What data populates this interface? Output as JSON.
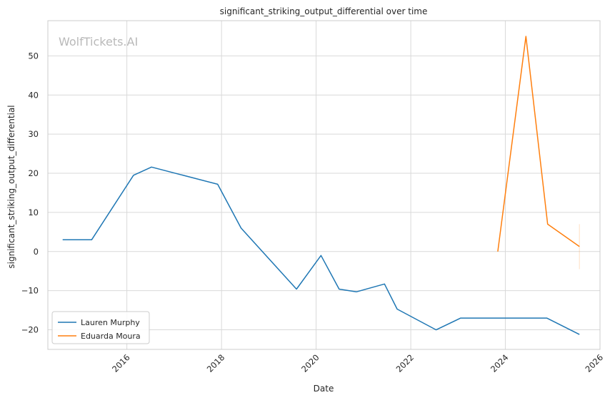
{
  "chart_data": {
    "type": "line",
    "title": "significant_striking_output_differential over time",
    "xlabel": "Date",
    "ylabel": "significant_striking_output_differential",
    "watermark": "WolfTickets.AI",
    "xlim": [
      "2014-05-01",
      "2026-01-01"
    ],
    "ylim": [
      -25,
      59
    ],
    "x_ticks": [
      "2016",
      "2018",
      "2020",
      "2022",
      "2024",
      "2026"
    ],
    "y_ticks": [
      -20,
      -10,
      0,
      10,
      20,
      30,
      40,
      50
    ],
    "grid": true,
    "legend_position": "lower-left",
    "series": [
      {
        "name": "Lauren Murphy",
        "color": "#1f77b4",
        "points": [
          {
            "x": "2014-08-23",
            "y": 3.0
          },
          {
            "x": "2015-04-04",
            "y": 3.0
          },
          {
            "x": "2016-02-21",
            "y": 19.5
          },
          {
            "x": "2016-07-09",
            "y": 21.6
          },
          {
            "x": "2017-12-02",
            "y": 17.2
          },
          {
            "x": "2018-06-01",
            "y": 6.0
          },
          {
            "x": "2019-08-03",
            "y": -9.6
          },
          {
            "x": "2020-02-08",
            "y": -1.0
          },
          {
            "x": "2020-06-27",
            "y": -9.6
          },
          {
            "x": "2020-11-07",
            "y": -10.3
          },
          {
            "x": "2021-06-12",
            "y": -8.3
          },
          {
            "x": "2021-09-18",
            "y": -14.7
          },
          {
            "x": "2022-07-16",
            "y": -20.0
          },
          {
            "x": "2023-01-21",
            "y": -17.0
          },
          {
            "x": "2024-11-16",
            "y": -17.0
          },
          {
            "x": "2025-07-26",
            "y": -21.2
          }
        ]
      },
      {
        "name": "Eduarda Moura",
        "color": "#ff7f0e",
        "points": [
          {
            "x": "2023-11-04",
            "y": 0.0
          },
          {
            "x": "2024-06-08",
            "y": 55.0
          },
          {
            "x": "2024-11-23",
            "y": 7.0
          },
          {
            "x": "2025-07-26",
            "y": 1.3
          }
        ]
      }
    ]
  }
}
